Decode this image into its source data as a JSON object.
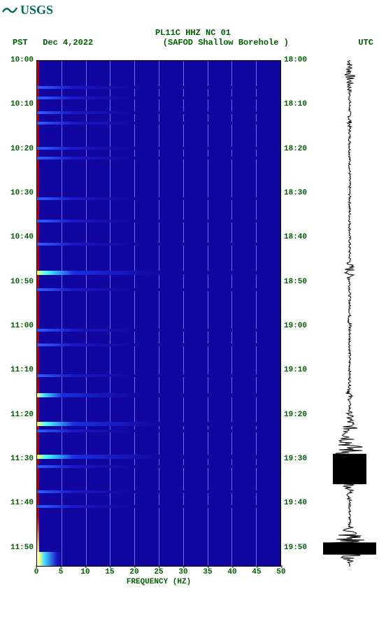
{
  "logo": {
    "text": "USGS",
    "color": "#006b56"
  },
  "header": {
    "title": "PL11C HHZ NC 01",
    "tz_left": "PST",
    "date": "Dec 4,2022",
    "station": "(SAFOD Shallow Borehole )",
    "tz_right": "UTC"
  },
  "style": {
    "font_family": "Courier New, monospace",
    "label_color": "#006000",
    "title_fontsize": 12,
    "label_fontsize": 11,
    "axis_stroke": "#000000"
  },
  "spectrogram": {
    "type": "spectrogram",
    "x_axis": {
      "label": "FREQUENCY (HZ)",
      "min": 0,
      "max": 50,
      "ticks": [
        0,
        5,
        10,
        15,
        20,
        25,
        30,
        35,
        40,
        45,
        50
      ],
      "grid_color": "#6e6eee"
    },
    "y_axis_left": {
      "label": "PST",
      "ticks": [
        "10:00",
        "10:10",
        "10:20",
        "10:30",
        "10:40",
        "10:50",
        "11:00",
        "11:10",
        "11:20",
        "11:30",
        "11:40",
        "11:50"
      ],
      "tick_positions_pct": [
        0,
        8.33,
        16.67,
        25,
        33.33,
        41.67,
        50,
        58.33,
        66.67,
        75,
        83.33,
        91.67
      ]
    },
    "y_axis_right": {
      "label": "UTC",
      "ticks": [
        "18:00",
        "18:10",
        "18:20",
        "18:30",
        "18:40",
        "18:50",
        "19:00",
        "19:10",
        "19:20",
        "19:30",
        "19:40",
        "19:50"
      ],
      "tick_positions_pct": [
        0,
        8.33,
        16.67,
        25,
        33.33,
        41.67,
        50,
        58.33,
        66.67,
        75,
        83.33,
        91.67
      ]
    },
    "background_color": "#1206a0",
    "low_freq_band_color": "#b00000",
    "colormap_markers": [
      "#1206a0",
      "#1a18c8",
      "#3060ff",
      "#40e0ff",
      "#80ff80",
      "#ffff60",
      "#ff6000",
      "#b00000",
      "#ffffff"
    ],
    "bright_events": [
      {
        "time_pct": 41.5,
        "intensity": "high"
      },
      {
        "time_pct": 65.8,
        "intensity": "med"
      },
      {
        "time_pct": 71.5,
        "intensity": "high"
      },
      {
        "time_pct": 78.0,
        "intensity": "high"
      }
    ],
    "faint_events_pct": [
      5,
      7,
      10,
      12,
      17,
      19,
      27,
      31.5,
      36,
      45,
      53,
      56,
      62,
      73,
      80,
      85,
      88
    ]
  },
  "seismogram": {
    "type": "waveform",
    "color": "#000000",
    "baseline_amp": 0.04,
    "bursts": [
      {
        "t_pct": 3,
        "amp": 0.2,
        "dur_pct": 5
      },
      {
        "t_pct": 12,
        "amp": 0.1,
        "dur_pct": 3
      },
      {
        "t_pct": 41.5,
        "amp": 0.22,
        "dur_pct": 3
      },
      {
        "t_pct": 52,
        "amp": 0.1,
        "dur_pct": 3
      },
      {
        "t_pct": 65.8,
        "amp": 0.15,
        "dur_pct": 2
      },
      {
        "t_pct": 71.5,
        "amp": 0.18,
        "dur_pct": 2
      },
      {
        "t_pct": 78.0,
        "amp": 0.6,
        "dur_pct": 10
      },
      {
        "t_pct": 95.5,
        "amp": 0.95,
        "dur_pct": 4
      }
    ]
  }
}
